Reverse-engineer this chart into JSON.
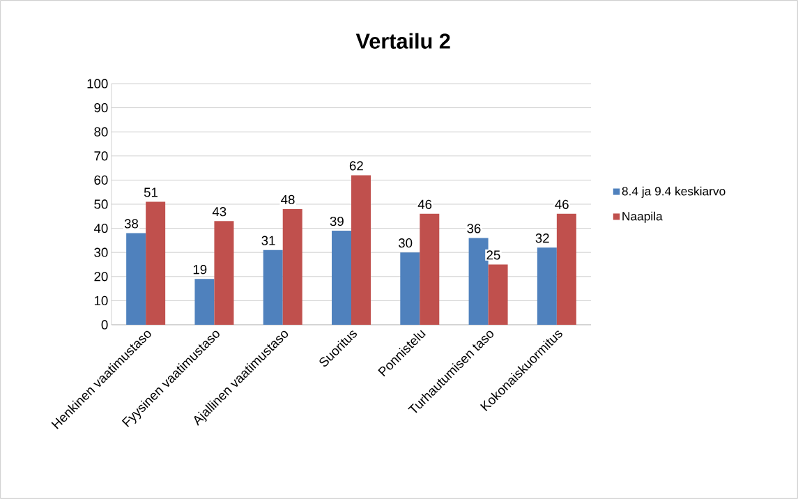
{
  "chart_data": {
    "type": "bar",
    "title": "Vertailu 2",
    "categories": [
      "Henkinen vaatimustaso",
      "Fyysinen vaatimustaso",
      "Ajallinen vaatimustaso",
      "Suoritus",
      "Ponnistelu",
      "Turhautumisen taso",
      "Kokonaiskuormitus"
    ],
    "series": [
      {
        "name": "8.4 ja 9.4 keskiarvo",
        "color": "#4f81bd",
        "values": [
          38,
          19,
          31,
          39,
          30,
          36,
          32
        ]
      },
      {
        "name": "Naapila",
        "color": "#c0504d",
        "values": [
          51,
          43,
          48,
          62,
          46,
          25,
          46
        ]
      }
    ],
    "ylim": [
      0,
      100
    ],
    "yticks": [
      0,
      10,
      20,
      30,
      40,
      50,
      60,
      70,
      80,
      90,
      100
    ],
    "grid": "y",
    "legend": "right",
    "data_labels": true
  }
}
